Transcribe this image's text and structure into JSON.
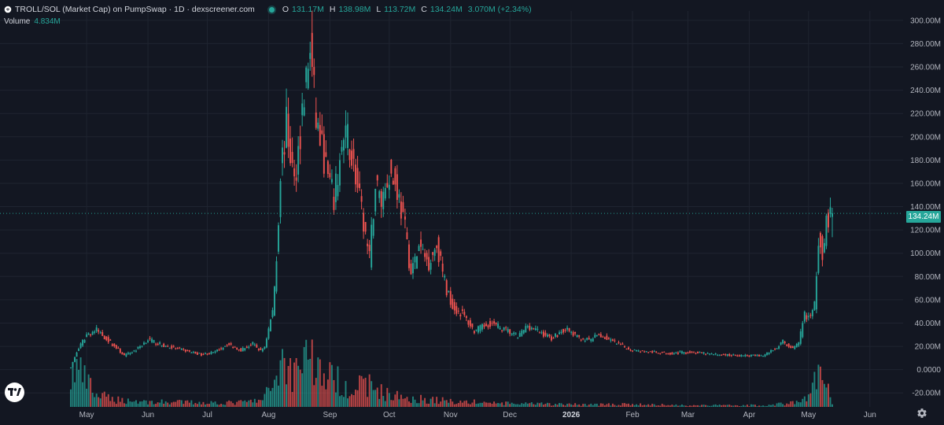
{
  "header": {
    "title": "TROLL/SOL (Market Cap) on PumpSwap · 1D · dexscreener.com",
    "open_label": "O",
    "open": "131.17M",
    "high_label": "H",
    "high": "138.98M",
    "low_label": "L",
    "low": "113.72M",
    "close_label": "C",
    "close": "134.24M",
    "change": "3.070M (+2.34%)"
  },
  "volume_legend": {
    "label": "Volume",
    "value": "4.834M"
  },
  "last_price_label": "134.24M",
  "colors": {
    "background": "#131722",
    "up": "#26a69a",
    "down": "#ef5350",
    "grid": "#1f2430",
    "axis_text": "#b2b5be"
  },
  "icons": {
    "logo": "tradingview-logo-icon",
    "settings": "gear-icon",
    "status": "live-status-dot"
  },
  "chart_data": {
    "type": "candlestick",
    "title": "TROLL/SOL (Market Cap) on PumpSwap · 1D · dexscreener.com",
    "y_axis_ticks": [
      "300.00M",
      "280.00M",
      "260.00M",
      "240.00M",
      "220.00M",
      "200.00M",
      "180.00M",
      "160.00M",
      "140.00M",
      "120.00M",
      "100.00M",
      "80.00M",
      "60.00M",
      "40.00M",
      "20.00M",
      "0.0000",
      "-20.00M"
    ],
    "x_axis_ticks": [
      "May",
      "Jun",
      "Jul",
      "Aug",
      "Sep",
      "Oct",
      "Nov",
      "Dec",
      "2026",
      "Feb",
      "Mar",
      "Apr",
      "May",
      "Jun"
    ],
    "ylim": [
      -20,
      300
    ],
    "unit": "M",
    "grid": true,
    "start_date": "2025-04-23",
    "end_date": "2026-05-13",
    "close_keypoints": [
      {
        "date": "2025-04-23",
        "close": 2
      },
      {
        "date": "2025-04-26",
        "close": 15
      },
      {
        "date": "2025-05-01",
        "close": 30
      },
      {
        "date": "2025-05-06",
        "close": 34
      },
      {
        "date": "2025-05-12",
        "close": 25
      },
      {
        "date": "2025-05-20",
        "close": 12
      },
      {
        "date": "2025-05-26",
        "close": 17
      },
      {
        "date": "2025-06-01",
        "close": 26
      },
      {
        "date": "2025-06-08",
        "close": 21
      },
      {
        "date": "2025-06-18",
        "close": 17
      },
      {
        "date": "2025-06-28",
        "close": 13
      },
      {
        "date": "2025-07-05",
        "close": 15
      },
      {
        "date": "2025-07-11",
        "close": 22
      },
      {
        "date": "2025-07-18",
        "close": 17
      },
      {
        "date": "2025-07-24",
        "close": 22
      },
      {
        "date": "2025-07-28",
        "close": 16
      },
      {
        "date": "2025-07-30",
        "close": 20
      },
      {
        "date": "2025-08-03",
        "close": 50
      },
      {
        "date": "2025-08-05",
        "close": 95
      },
      {
        "date": "2025-08-07",
        "close": 170
      },
      {
        "date": "2025-08-10",
        "close": 210
      },
      {
        "date": "2025-08-12",
        "close": 185
      },
      {
        "date": "2025-08-14",
        "close": 160
      },
      {
        "date": "2025-08-19",
        "close": 235
      },
      {
        "date": "2025-08-22",
        "close": 275
      },
      {
        "date": "2025-08-25",
        "close": 215
      },
      {
        "date": "2025-08-28",
        "close": 190
      },
      {
        "date": "2025-08-31",
        "close": 165
      },
      {
        "date": "2025-09-03",
        "close": 145
      },
      {
        "date": "2025-09-07",
        "close": 190
      },
      {
        "date": "2025-09-10",
        "close": 200
      },
      {
        "date": "2025-09-13",
        "close": 175
      },
      {
        "date": "2025-09-17",
        "close": 135
      },
      {
        "date": "2025-09-21",
        "close": 95
      },
      {
        "date": "2025-09-24",
        "close": 160
      },
      {
        "date": "2025-09-27",
        "close": 145
      },
      {
        "date": "2025-10-01",
        "close": 170
      },
      {
        "date": "2025-10-05",
        "close": 155
      },
      {
        "date": "2025-10-09",
        "close": 120
      },
      {
        "date": "2025-10-12",
        "close": 82
      },
      {
        "date": "2025-10-16",
        "close": 105
      },
      {
        "date": "2025-10-21",
        "close": 92
      },
      {
        "date": "2025-10-25",
        "close": 108
      },
      {
        "date": "2025-10-30",
        "close": 68
      },
      {
        "date": "2025-11-03",
        "close": 52
      },
      {
        "date": "2025-11-07",
        "close": 48
      },
      {
        "date": "2025-11-13",
        "close": 33
      },
      {
        "date": "2025-11-21",
        "close": 40
      },
      {
        "date": "2025-11-30",
        "close": 33
      },
      {
        "date": "2025-12-05",
        "close": 28
      },
      {
        "date": "2025-12-10",
        "close": 38
      },
      {
        "date": "2025-12-15",
        "close": 33
      },
      {
        "date": "2025-12-22",
        "close": 27
      },
      {
        "date": "2025-12-29",
        "close": 35
      },
      {
        "date": "2026-01-04",
        "close": 28
      },
      {
        "date": "2026-01-10",
        "close": 25
      },
      {
        "date": "2026-01-15",
        "close": 30
      },
      {
        "date": "2026-01-22",
        "close": 24
      },
      {
        "date": "2026-01-31",
        "close": 17
      },
      {
        "date": "2026-02-10",
        "close": 15
      },
      {
        "date": "2026-02-20",
        "close": 14
      },
      {
        "date": "2026-03-01",
        "close": 15
      },
      {
        "date": "2026-03-15",
        "close": 13
      },
      {
        "date": "2026-03-28",
        "close": 12
      },
      {
        "date": "2026-04-08",
        "close": 12
      },
      {
        "date": "2026-04-14",
        "close": 18
      },
      {
        "date": "2026-04-18",
        "close": 24
      },
      {
        "date": "2026-04-23",
        "close": 18
      },
      {
        "date": "2026-04-26",
        "close": 22
      },
      {
        "date": "2026-04-29",
        "close": 48
      },
      {
        "date": "2026-05-02",
        "close": 44
      },
      {
        "date": "2026-05-04",
        "close": 55
      },
      {
        "date": "2026-05-06",
        "close": 115
      },
      {
        "date": "2026-05-08",
        "close": 102
      },
      {
        "date": "2026-05-10",
        "close": 128
      },
      {
        "date": "2026-05-12",
        "close": 131.17
      },
      {
        "date": "2026-05-13",
        "close": 134.24
      }
    ],
    "volume_keypoints": [
      {
        "date": "2025-04-23",
        "volume": 32
      },
      {
        "date": "2025-04-26",
        "volume": 48
      },
      {
        "date": "2025-05-01",
        "volume": 30
      },
      {
        "date": "2025-05-06",
        "volume": 14
      },
      {
        "date": "2025-05-15",
        "volume": 9
      },
      {
        "date": "2025-06-01",
        "volume": 6
      },
      {
        "date": "2025-07-15",
        "volume": 5
      },
      {
        "date": "2025-07-29",
        "volume": 8
      },
      {
        "date": "2025-08-03",
        "volume": 28
      },
      {
        "date": "2025-08-08",
        "volume": 58
      },
      {
        "date": "2025-08-13",
        "volume": 40
      },
      {
        "date": "2025-08-20",
        "volume": 72
      },
      {
        "date": "2025-08-27",
        "volume": 42
      },
      {
        "date": "2025-09-03",
        "volume": 34
      },
      {
        "date": "2025-09-12",
        "volume": 22
      },
      {
        "date": "2025-09-20",
        "volume": 28
      },
      {
        "date": "2025-10-01",
        "volume": 14
      },
      {
        "date": "2025-10-15",
        "volume": 10
      },
      {
        "date": "2025-11-01",
        "volume": 7
      },
      {
        "date": "2025-12-01",
        "volume": 4
      },
      {
        "date": "2026-01-01",
        "volume": 3
      },
      {
        "date": "2026-02-01",
        "volume": 3
      },
      {
        "date": "2026-03-01",
        "volume": 2
      },
      {
        "date": "2026-04-10",
        "volume": 2
      },
      {
        "date": "2026-04-27",
        "volume": 6
      },
      {
        "date": "2026-05-02",
        "volume": 18
      },
      {
        "date": "2026-05-06",
        "volume": 40
      },
      {
        "date": "2026-05-09",
        "volume": 28
      },
      {
        "date": "2026-05-12",
        "volume": 14
      },
      {
        "date": "2026-05-13",
        "volume": 4.834
      }
    ],
    "last_close": 134.24
  }
}
